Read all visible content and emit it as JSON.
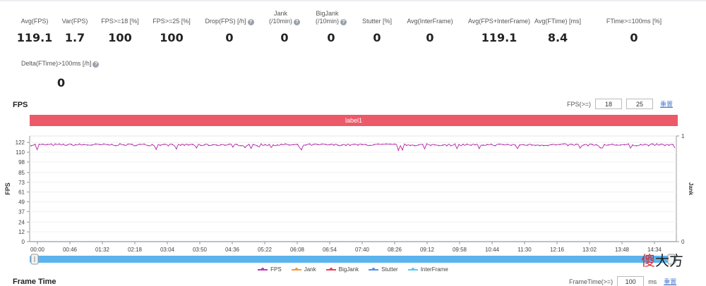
{
  "stats": [
    {
      "label": "Avg(FPS)",
      "value": "119.1",
      "help": false
    },
    {
      "label": "Var(FPS)",
      "value": "1.7",
      "help": false
    },
    {
      "label": "FPS>=18 [%]",
      "value": "100",
      "help": false
    },
    {
      "label": "FPS>=25 [%]",
      "value": "100",
      "help": false
    },
    {
      "label": "Drop(FPS) [/h]",
      "value": "0",
      "help": true
    },
    {
      "label": "Jank\n(/10min)",
      "value": "0",
      "help": true
    },
    {
      "label": "BigJank\n(/10min)",
      "value": "0",
      "help": true
    },
    {
      "label": "Stutter [%]",
      "value": "0",
      "help": false
    },
    {
      "label": "Avg(InterFrame)",
      "value": "0",
      "help": false
    },
    {
      "label": "Avg(FPS+InterFrame)",
      "value": "119.1",
      "help": false
    },
    {
      "label": "Avg(FTime) [ms]",
      "value": "8.4",
      "help": false
    },
    {
      "label": "FTime>=100ms [%]",
      "value": "0",
      "help": false
    }
  ],
  "stats_row2": [
    {
      "label": "Delta(FTime)>100ms [/h]",
      "value": "0",
      "help": true
    }
  ],
  "fps_section": {
    "title": "FPS",
    "threshold_label": "FPS(>=)",
    "threshold_1": "18",
    "threshold_2": "25",
    "reset_label": "重置",
    "label_bar": "label1"
  },
  "chart_data": {
    "type": "line",
    "ylabel": "FPS",
    "y2label": "Jank",
    "ylim": [
      0,
      130
    ],
    "yticks": [
      0,
      12,
      24,
      37,
      49,
      61,
      73,
      85,
      98,
      110,
      122
    ],
    "y2ticks": [
      0,
      1
    ],
    "xticks": [
      "00:00",
      "00:46",
      "01:32",
      "02:18",
      "03:04",
      "03:50",
      "04:36",
      "05:22",
      "06:08",
      "06:54",
      "07:40",
      "08:26",
      "09:12",
      "09:58",
      "10:44",
      "11:30",
      "12:16",
      "13:02",
      "13:48",
      "14:34"
    ],
    "series": [
      {
        "name": "FPS",
        "color": "#b83cb0",
        "baseline": 119.1,
        "variance": 1.7
      },
      {
        "name": "Jank",
        "color": "#f39a3c",
        "values_all": 0
      },
      {
        "name": "BigJank",
        "color": "#e0445a",
        "values_all": 0
      },
      {
        "name": "Stutter",
        "color": "#5b8ee0",
        "values_all": 0
      },
      {
        "name": "InterFrame",
        "color": "#5cc8f0",
        "values_all": 0
      }
    ],
    "grid": true
  },
  "frame_time_section": {
    "title": "Frame Time",
    "threshold_label": "FrameTime(>=)",
    "threshold_value": "100",
    "unit": "ms",
    "reset_label": "重置"
  },
  "watermark": {
    "first": "傻",
    "rest": "大方"
  }
}
